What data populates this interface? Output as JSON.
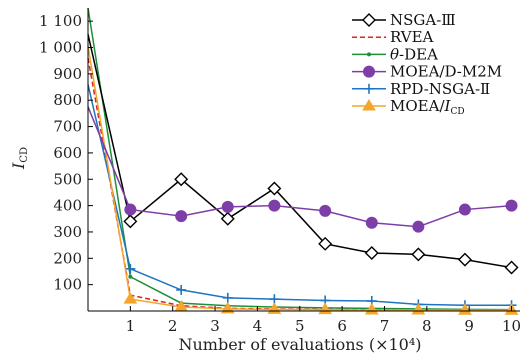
{
  "chart_data": {
    "type": "line",
    "title": "",
    "xlabel": "Number of evaluations (×10⁴)",
    "ylabel_main": "I",
    "ylabel_sub": "CD",
    "xlim": [
      0,
      10.2
    ],
    "ylim": [
      0,
      1150
    ],
    "x_ticks": [
      1,
      2,
      3,
      4,
      5,
      6,
      7,
      8,
      9,
      10
    ],
    "x_tick_labels": [
      "1",
      "2",
      "3",
      "4",
      "5",
      "6",
      "7",
      "8",
      "9",
      "10"
    ],
    "y_ticks": [
      100,
      200,
      300,
      400,
      500,
      600,
      700,
      800,
      900,
      1000,
      1100
    ],
    "y_tick_labels": [
      "100",
      "200",
      "300",
      "400",
      "500",
      "600",
      "700",
      "800",
      "900",
      "1 000",
      "1 100"
    ],
    "grid": false,
    "legend_position": "top-right",
    "series": [
      {
        "name": "NSGA-Ⅲ",
        "color": "#000000",
        "marker": "diamond",
        "dash": "solid",
        "x": [
          0,
          1,
          2.2,
          3.3,
          4.4,
          5.6,
          6.7,
          7.8,
          8.9,
          10
        ],
        "y": [
          1050,
          340,
          500,
          350,
          465,
          255,
          220,
          215,
          195,
          165
        ]
      },
      {
        "name": "RVEA",
        "color": "#e0211d",
        "marker": "none",
        "dash": "dashed",
        "x": [
          0,
          1,
          2.2,
          3.3,
          4.4,
          5.6,
          6.7,
          7.8,
          8.9,
          10
        ],
        "y": [
          960,
          60,
          20,
          10,
          8,
          6,
          5,
          5,
          4,
          4
        ]
      },
      {
        "name": "θ-DEA",
        "color": "#1e8f3a",
        "marker": "dot",
        "dash": "solid",
        "x": [
          0,
          1,
          2.2,
          3.3,
          4.4,
          5.6,
          6.7,
          7.8,
          8.9,
          10
        ],
        "y": [
          1150,
          130,
          30,
          20,
          15,
          12,
          10,
          8,
          6,
          5
        ]
      },
      {
        "name": "MOEA/D-M2M",
        "color": "#7e3ea8",
        "marker": "circle",
        "dash": "solid",
        "x": [
          0,
          1,
          2.2,
          3.3,
          4.4,
          5.6,
          6.7,
          7.8,
          8.9,
          10
        ],
        "y": [
          775,
          385,
          360,
          395,
          400,
          380,
          335,
          320,
          385,
          400
        ]
      },
      {
        "name": "RPD-NSGA-Ⅱ",
        "color": "#1f74c2",
        "marker": "plus",
        "dash": "solid",
        "x": [
          0,
          1,
          2.2,
          3.3,
          4.4,
          5.6,
          6.7,
          7.8,
          8.9,
          10
        ],
        "y": [
          860,
          160,
          80,
          50,
          45,
          40,
          38,
          25,
          22,
          22
        ]
      },
      {
        "name": "MOEA/I",
        "name_sub": "CD",
        "color": "#f3a62b",
        "marker": "triangle",
        "dash": "solid",
        "x": [
          0,
          1,
          2.2,
          3.3,
          4.4,
          5.6,
          6.7,
          7.8,
          8.9,
          10
        ],
        "y": [
          1005,
          45,
          15,
          8,
          6,
          5,
          4,
          4,
          3,
          3
        ]
      }
    ]
  }
}
